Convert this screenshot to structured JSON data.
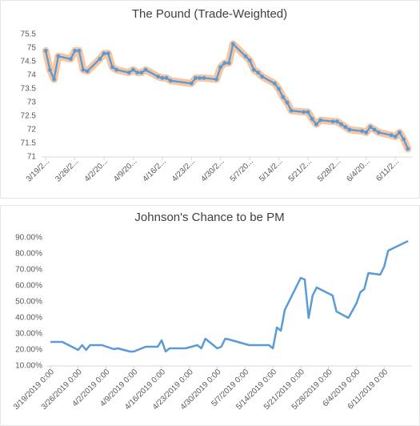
{
  "chart_data": [
    {
      "type": "line",
      "title": "The Pound (Trade-Weighted)",
      "color": "#5b9bd5",
      "glow": "#f4b183",
      "markers": true,
      "x": [
        "3/19",
        "3/20",
        "3/21",
        "3/22",
        "3/25",
        "3/26",
        "3/27",
        "3/28",
        "3/29",
        "4/1",
        "4/2",
        "4/3",
        "4/4",
        "4/5",
        "4/8",
        "4/9",
        "4/10",
        "4/11",
        "4/12",
        "4/15",
        "4/16",
        "4/17",
        "4/18",
        "4/23",
        "4/24",
        "4/25",
        "4/26",
        "4/29",
        "4/30",
        "5/1",
        "5/2",
        "5/3",
        "5/6",
        "5/7",
        "5/8",
        "5/9",
        "5/10",
        "5/13",
        "5/14",
        "5/15",
        "5/16",
        "5/17",
        "5/20",
        "5/21",
        "5/22",
        "5/23",
        "5/24",
        "5/27",
        "5/28",
        "5/29",
        "5/30",
        "5/31",
        "6/3",
        "6/4",
        "6/5",
        "6/6",
        "6/7",
        "6/10",
        "6/11",
        "6/12",
        "6/13",
        "6/14"
      ],
      "values": [
        74.9,
        74.2,
        73.85,
        74.7,
        74.6,
        74.9,
        74.9,
        74.2,
        74.15,
        74.6,
        74.8,
        74.8,
        74.3,
        74.2,
        74.1,
        74.2,
        74.1,
        74.1,
        74.2,
        73.95,
        73.9,
        73.9,
        73.8,
        73.7,
        73.9,
        73.9,
        73.9,
        73.85,
        74.3,
        74.45,
        74.45,
        75.15,
        74.7,
        74.55,
        74.2,
        74.1,
        73.95,
        73.7,
        73.5,
        73.2,
        73.0,
        72.7,
        72.65,
        72.65,
        72.4,
        72.2,
        72.35,
        72.3,
        72.3,
        72.2,
        72.1,
        72.0,
        71.95,
        71.9,
        72.1,
        72.0,
        71.9,
        71.8,
        71.75,
        71.9,
        71.65,
        71.3
      ],
      "xlim": [
        "3/18",
        "6/15"
      ],
      "xticks": [
        {
          "value": "3/19",
          "label": "3/19/2..."
        },
        {
          "value": "3/26",
          "label": "3/26/2..."
        },
        {
          "value": "4/2",
          "label": "4/2/20..."
        },
        {
          "value": "4/9",
          "label": "4/9/20..."
        },
        {
          "value": "4/16",
          "label": "4/16/2..."
        },
        {
          "value": "4/23",
          "label": "4/23/2..."
        },
        {
          "value": "4/30",
          "label": "4/30/2..."
        },
        {
          "value": "5/7",
          "label": "5/7/20..."
        },
        {
          "value": "5/14",
          "label": "5/14/2..."
        },
        {
          "value": "5/21",
          "label": "5/21/2..."
        },
        {
          "value": "5/28",
          "label": "5/28/2..."
        },
        {
          "value": "6/4",
          "label": "6/4/20..."
        },
        {
          "value": "6/11",
          "label": "6/11/2..."
        }
      ],
      "ylim": [
        71,
        75.5
      ],
      "yticks": [
        71,
        71.5,
        72,
        72.5,
        73,
        73.5,
        74,
        74.5,
        75,
        75.5
      ]
    },
    {
      "type": "line",
      "title": "Johnson's Chance to be PM",
      "color": "#5b9bd5",
      "markers": false,
      "x": [
        "3/19",
        "3/22",
        "3/26",
        "3/27",
        "3/28",
        "3/29",
        "4/1",
        "4/4",
        "4/5",
        "4/8",
        "4/9",
        "4/12",
        "4/15",
        "4/16",
        "4/17",
        "4/18",
        "4/22",
        "4/25",
        "4/26",
        "4/27",
        "4/30",
        "5/1",
        "5/2",
        "5/3",
        "5/8",
        "5/13",
        "5/14",
        "5/15",
        "5/16",
        "5/17",
        "5/21",
        "5/22",
        "5/23",
        "5/24",
        "5/25",
        "5/29",
        "5/30",
        "6/2",
        "6/4",
        "6/5",
        "6/6",
        "6/7",
        "6/10",
        "6/11",
        "6/12",
        "6/17"
      ],
      "values": [
        25,
        25,
        20,
        23,
        20,
        23,
        23,
        20.5,
        21,
        19,
        19,
        22,
        22,
        26,
        19,
        21,
        21,
        23,
        21,
        27,
        21,
        22,
        27,
        26.5,
        23,
        23,
        21,
        34,
        32,
        45,
        65,
        64,
        40,
        54,
        59,
        54,
        44,
        40,
        49,
        56,
        58,
        68,
        67,
        72,
        82,
        88
      ],
      "xlim": [
        "3/18",
        "6/18"
      ],
      "xticks": [
        {
          "value": "3/19",
          "label": "3/19/2019 0:00"
        },
        {
          "value": "3/26",
          "label": "3/26/2019 0:00"
        },
        {
          "value": "4/2",
          "label": "4/2/2019 0:00"
        },
        {
          "value": "4/9",
          "label": "4/9/2019 0:00"
        },
        {
          "value": "4/16",
          "label": "4/16/2019 0:00"
        },
        {
          "value": "4/23",
          "label": "4/23/2019 0:00"
        },
        {
          "value": "4/30",
          "label": "4/30/2019 0:00"
        },
        {
          "value": "5/7",
          "label": "5/7/2019 0:00"
        },
        {
          "value": "5/14",
          "label": "5/14/2019 0:00"
        },
        {
          "value": "5/21",
          "label": "5/21/2019 0:00"
        },
        {
          "value": "5/28",
          "label": "5/28/2019 0:00"
        },
        {
          "value": "6/4",
          "label": "6/4/2019 0:00"
        },
        {
          "value": "6/11",
          "label": "6/11/2019 0:00"
        }
      ],
      "ylim": [
        10,
        90
      ],
      "yticks": [
        {
          "value": 10,
          "label": "10.00%"
        },
        {
          "value": 20,
          "label": "20.00%"
        },
        {
          "value": 30,
          "label": "30.00%"
        },
        {
          "value": 40,
          "label": "40.00%"
        },
        {
          "value": 50,
          "label": "50.00%"
        },
        {
          "value": 60,
          "label": "60.00%"
        },
        {
          "value": 70,
          "label": "70.00%"
        },
        {
          "value": 80,
          "label": "80.00%"
        },
        {
          "value": 90,
          "label": "90.00%"
        }
      ]
    }
  ]
}
